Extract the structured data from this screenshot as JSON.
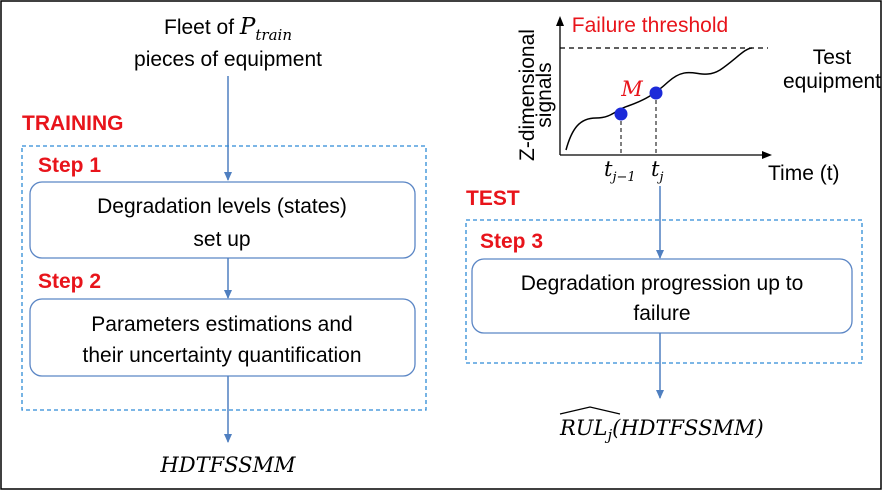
{
  "training": {
    "source": {
      "text": "Fleet of",
      "symbol": "P",
      "subscript": "train",
      "line2": "pieces of equipment"
    },
    "label": "TRAINING",
    "steps": [
      {
        "label": "Step 1",
        "lines": [
          "Degradation levels (states)",
          "set up"
        ]
      },
      {
        "label": "Step 2",
        "lines": [
          "Parameters estimations and",
          "their uncertainty quantification"
        ]
      }
    ],
    "output": "HDTFSSMM"
  },
  "test": {
    "plot": {
      "threshold_label": "Failure threshold",
      "y_label": [
        "Z-dimensional",
        "signals"
      ],
      "x_label": "Time",
      "x_var": "(t)",
      "point_label": "M",
      "ticks": [
        {
          "symbol": "t",
          "subscript": "j−1"
        },
        {
          "symbol": "t",
          "subscript": "j"
        }
      ],
      "equipment_label": [
        "Test",
        "equipment"
      ]
    },
    "label": "TEST",
    "step": {
      "label": "Step 3",
      "lines": [
        "Degradation progression up to",
        "failure"
      ]
    },
    "output": {
      "hat": "RUL",
      "subscript": "j",
      "args": "(HDTFSSMM)"
    }
  }
}
